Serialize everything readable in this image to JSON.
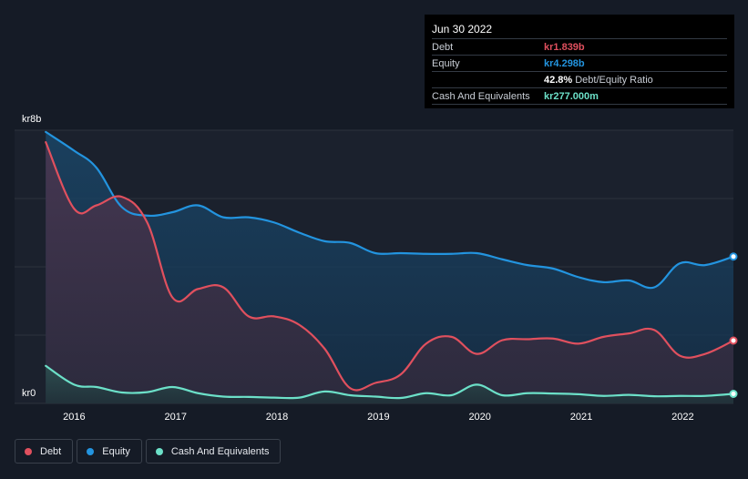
{
  "colors": {
    "background": "#151b26",
    "debt": "#e0505e",
    "equity": "#2394df",
    "cash": "#6ce0c8",
    "grid": "#2c323d"
  },
  "tooltip": {
    "date": "Jun 30 2022",
    "debt_label": "Debt",
    "debt_value": "kr1.839b",
    "equity_label": "Equity",
    "equity_value": "kr4.298b",
    "ratio_value": "42.8%",
    "ratio_label": "Debt/Equity Ratio",
    "cash_label": "Cash And Equivalents",
    "cash_value": "kr277.000m"
  },
  "legend": {
    "debt": "Debt",
    "equity": "Equity",
    "cash": "Cash And Equivalents"
  },
  "chart_data": {
    "type": "area",
    "title": "",
    "xlabel": "",
    "ylabel": "",
    "y_unit": "kr billions",
    "ylim": [
      0,
      8
    ],
    "xlim": [
      2015.7,
      2022.5
    ],
    "y_tick_labels": [
      {
        "value": 8,
        "label": "kr8b"
      },
      {
        "value": 0,
        "label": "kr0"
      }
    ],
    "gridlines": [
      0,
      2,
      4,
      6,
      8
    ],
    "x_ticks": [
      {
        "value": 2016,
        "label": "2016"
      },
      {
        "value": 2017,
        "label": "2017"
      },
      {
        "value": 2018,
        "label": "2018"
      },
      {
        "value": 2019,
        "label": "2019"
      },
      {
        "value": 2020,
        "label": "2020"
      },
      {
        "value": 2021,
        "label": "2021"
      },
      {
        "value": 2022,
        "label": "2022"
      }
    ],
    "series": [
      {
        "name": "Equity",
        "key": "equity",
        "x": [
          2015.72,
          2016.0,
          2016.22,
          2016.47,
          2016.72,
          2016.97,
          2017.22,
          2017.47,
          2017.72,
          2017.97,
          2018.22,
          2018.47,
          2018.72,
          2018.97,
          2019.22,
          2019.47,
          2019.72,
          2019.97,
          2020.22,
          2020.47,
          2020.72,
          2020.97,
          2021.22,
          2021.47,
          2021.72,
          2021.97,
          2022.22,
          2022.5
        ],
        "values": [
          7.95,
          7.4,
          6.9,
          5.75,
          5.5,
          5.6,
          5.8,
          5.45,
          5.45,
          5.3,
          5.0,
          4.75,
          4.7,
          4.4,
          4.4,
          4.38,
          4.38,
          4.4,
          4.22,
          4.05,
          3.95,
          3.7,
          3.55,
          3.6,
          3.4,
          4.1,
          4.05,
          4.3
        ]
      },
      {
        "name": "Debt",
        "key": "debt",
        "x": [
          2015.72,
          2016.0,
          2016.22,
          2016.47,
          2016.72,
          2016.97,
          2017.22,
          2017.47,
          2017.72,
          2017.97,
          2018.22,
          2018.47,
          2018.72,
          2018.97,
          2019.22,
          2019.47,
          2019.72,
          2019.97,
          2020.22,
          2020.47,
          2020.72,
          2020.97,
          2021.22,
          2021.47,
          2021.72,
          2021.97,
          2022.22,
          2022.5
        ],
        "values": [
          7.65,
          5.7,
          5.8,
          6.05,
          5.3,
          3.1,
          3.35,
          3.4,
          2.55,
          2.55,
          2.3,
          1.6,
          0.45,
          0.6,
          0.85,
          1.75,
          1.95,
          1.45,
          1.85,
          1.88,
          1.9,
          1.75,
          1.95,
          2.05,
          2.15,
          1.4,
          1.45,
          1.84
        ]
      },
      {
        "name": "Cash And Equivalents",
        "key": "cash",
        "x": [
          2015.72,
          2016.0,
          2016.22,
          2016.47,
          2016.72,
          2016.97,
          2017.22,
          2017.47,
          2017.72,
          2017.97,
          2018.22,
          2018.47,
          2018.72,
          2018.97,
          2019.22,
          2019.47,
          2019.72,
          2019.97,
          2020.22,
          2020.47,
          2020.72,
          2020.97,
          2021.22,
          2021.47,
          2021.72,
          2021.97,
          2022.22,
          2022.5
        ],
        "values": [
          1.1,
          0.55,
          0.48,
          0.32,
          0.33,
          0.48,
          0.3,
          0.2,
          0.19,
          0.17,
          0.17,
          0.35,
          0.24,
          0.2,
          0.16,
          0.3,
          0.24,
          0.55,
          0.24,
          0.3,
          0.29,
          0.27,
          0.22,
          0.25,
          0.21,
          0.22,
          0.22,
          0.28
        ]
      }
    ],
    "highlight_x": 2022.5
  }
}
